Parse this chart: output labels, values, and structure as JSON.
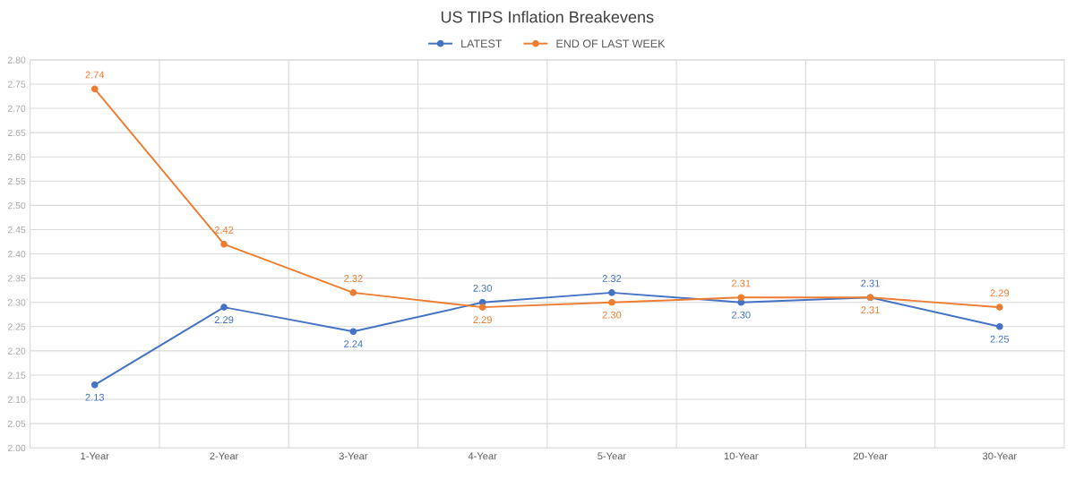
{
  "chart_data": {
    "type": "line",
    "title": "US TIPS Inflation Breakevens",
    "categories": [
      "1-Year",
      "2-Year",
      "3-Year",
      "4-Year",
      "5-Year",
      "10-Year",
      "20-Year",
      "30-Year"
    ],
    "series": [
      {
        "name": "LATEST",
        "color": "#4472c4",
        "values": [
          2.13,
          2.29,
          2.24,
          2.3,
          2.32,
          2.3,
          2.31,
          2.25
        ],
        "value_labels": [
          "2.13",
          "2.29",
          "2.24",
          "2.30",
          "2.32",
          "2.30",
          "2.31",
          "2.25"
        ]
      },
      {
        "name": "END OF LAST WEEK",
        "color": "#ed7d31",
        "values": [
          2.74,
          2.42,
          2.32,
          2.29,
          2.3,
          2.31,
          2.31,
          2.29
        ],
        "value_labels": [
          "2.74",
          "2.42",
          "2.32",
          "2.29",
          "2.30",
          "2.31",
          "2.31",
          "2.29"
        ]
      }
    ],
    "ylim": [
      2.0,
      2.8
    ],
    "yticks": [
      {
        "value": 2.0,
        "label": "2.00"
      },
      {
        "value": 2.05,
        "label": "2.05"
      },
      {
        "value": 2.1,
        "label": "2.10"
      },
      {
        "value": 2.15,
        "label": "2.15"
      },
      {
        "value": 2.2,
        "label": "2.20"
      },
      {
        "value": 2.25,
        "label": "2.25"
      },
      {
        "value": 2.3,
        "label": "2.30"
      },
      {
        "value": 2.35,
        "label": "2.35"
      },
      {
        "value": 2.4,
        "label": "2.40"
      },
      {
        "value": 2.45,
        "label": "2.45"
      },
      {
        "value": 2.5,
        "label": "2.50"
      },
      {
        "value": 2.55,
        "label": "2.55"
      },
      {
        "value": 2.6,
        "label": "2.60"
      },
      {
        "value": 2.65,
        "label": "2.65"
      },
      {
        "value": 2.7,
        "label": "2.70"
      },
      {
        "value": 2.75,
        "label": "2.75"
      },
      {
        "value": 2.8,
        "label": "2.80"
      }
    ],
    "grid": true,
    "legend": "top",
    "marker": "circle",
    "line_style": "solid"
  }
}
